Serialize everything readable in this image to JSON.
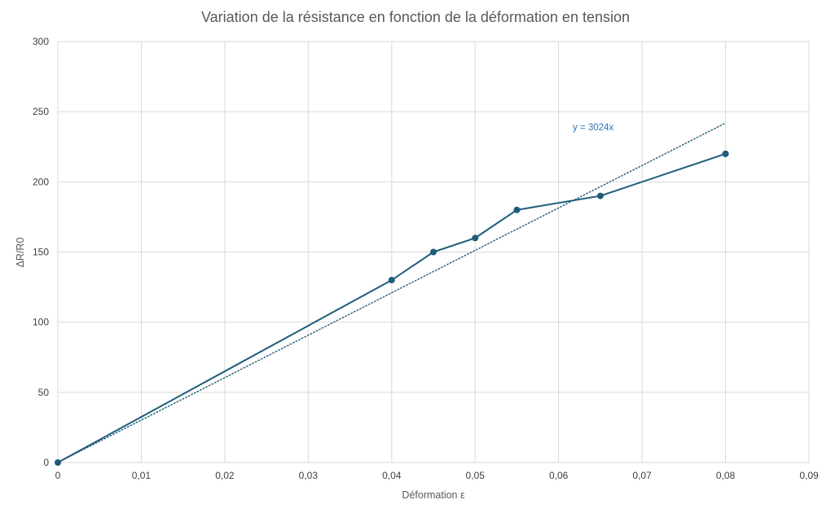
{
  "chart_data": {
    "type": "line",
    "title": "Variation de la résistance en fonction de la déformation en tension",
    "xlabel": "Déformation ε",
    "ylabel": "ΔR/R0",
    "xlim": [
      0,
      0.09
    ],
    "ylim": [
      0,
      300
    ],
    "x_ticks": [
      0,
      0.01,
      0.02,
      0.03,
      0.04,
      0.05,
      0.06,
      0.07,
      0.08,
      0.09
    ],
    "x_tick_labels": [
      "0",
      "0,01",
      "0,02",
      "0,03",
      "0,04",
      "0,05",
      "0,06",
      "0,07",
      "0,08",
      "0,09"
    ],
    "y_ticks": [
      0,
      50,
      100,
      150,
      200,
      250,
      300
    ],
    "y_tick_labels": [
      "0",
      "50",
      "100",
      "150",
      "200",
      "250",
      "300"
    ],
    "grid": true,
    "legend": "none",
    "series": [
      {
        "x": [
          0,
          0.04,
          0.045,
          0.05,
          0.055,
          0.065,
          0.08
        ],
        "y": [
          0,
          130,
          150,
          160,
          180,
          190,
          220
        ],
        "color": "#1f5c7a"
      }
    ],
    "trendline": {
      "slope": 3024,
      "intercept": 0,
      "x_range": [
        0,
        0.08
      ],
      "style": "dotted",
      "color": "#1f5c7a",
      "label": "y = 3024x",
      "label_color": "#2e75b6"
    }
  }
}
